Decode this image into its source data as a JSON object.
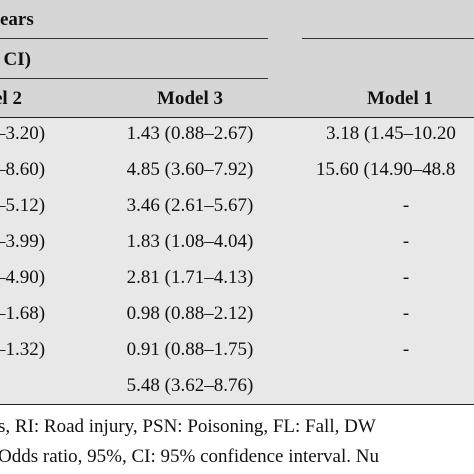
{
  "header": {
    "group_fragment": "ears",
    "measure_fragment": ", CI)",
    "columns": [
      "el 2",
      "Model 3",
      "Model 1"
    ]
  },
  "rows": [
    [
      "–3.20)",
      "1.43 (0.88–2.67)",
      "3.18 (1.45–10.20"
    ],
    [
      "–8.60)",
      "4.85 (3.60–7.92)",
      "15.60 (14.90–48.8"
    ],
    [
      "–5.12)",
      "3.46 (2.61–5.67)",
      "-"
    ],
    [
      "–3.99)",
      "1.83 (1.08–4.04)",
      "-"
    ],
    [
      "–4.90)",
      "2.81 (1.71–4.13)",
      "-"
    ],
    [
      "–1.68)",
      "0.98 (0.88–2.12)",
      "-"
    ],
    [
      "–1.32)",
      "0.91 (0.88–1.75)",
      "-"
    ],
    [
      "",
      "5.48 (3.62–8.76)",
      ""
    ]
  ],
  "footnote": {
    "line1": "s, RI: Road injury, PSN: Poisoning, FL: Fall, DW",
    "line2": "Odds ratio, 95%, CI: 95% confidence interval. Nu"
  }
}
